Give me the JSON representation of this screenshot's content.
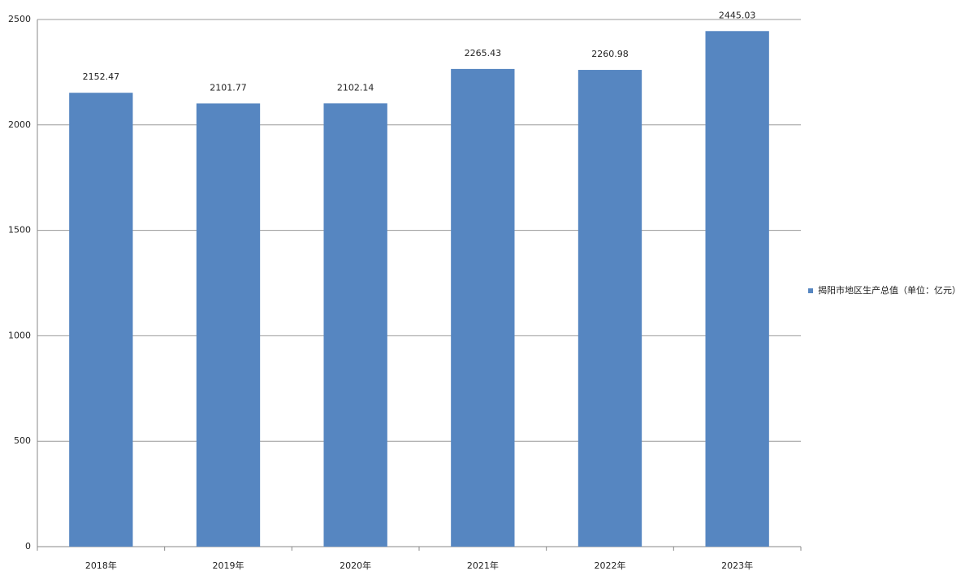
{
  "chart_data": {
    "type": "bar",
    "categories": [
      "2018年",
      "2019年",
      "2020年",
      "2021年",
      "2022年",
      "2023年"
    ],
    "series": [
      {
        "name": "揭阳市地区生产总值（单位：亿元）",
        "color": "#5686c1",
        "values": [
          2152.47,
          2101.77,
          2102.14,
          2265.43,
          2260.98,
          2445.03
        ]
      }
    ],
    "ylim": [
      0,
      2500
    ],
    "yticks": [
      0,
      500,
      1000,
      1500,
      2000,
      2500
    ],
    "grid": true,
    "legend": "right"
  }
}
